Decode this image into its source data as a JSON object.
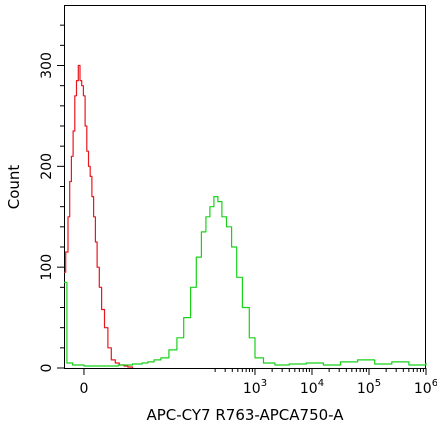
{
  "chart_data": {
    "type": "line",
    "title": "",
    "xlabel": "APC-CY7 R763-APCA750-A",
    "ylabel": "Count",
    "xscale": "biexponential",
    "ylim": [
      0,
      360
    ],
    "xticks": [
      {
        "pos": 0,
        "label": "0"
      },
      {
        "pos": 3,
        "label": "10",
        "exp": "3"
      },
      {
        "pos": 4,
        "label": "10",
        "exp": "4"
      },
      {
        "pos": 5,
        "label": "10",
        "exp": "5"
      },
      {
        "pos": 6,
        "label": "10",
        "exp": "6"
      }
    ],
    "yticks": [
      0,
      100,
      200,
      300
    ],
    "grid": false,
    "legend": "none",
    "series": [
      {
        "color": "#e8171f",
        "x": [
          -0.35,
          -0.32,
          -0.28,
          -0.25,
          -0.22,
          -0.19,
          -0.16,
          -0.13,
          -0.1,
          -0.07,
          -0.04,
          -0.01,
          0.02,
          0.05,
          0.08,
          0.11,
          0.14,
          0.17,
          0.2,
          0.23,
          0.27,
          0.31,
          0.36,
          0.42,
          0.48,
          0.55,
          0.62,
          0.7,
          0.77,
          0.85
        ],
        "y": [
          95,
          115,
          150,
          185,
          210,
          235,
          270,
          285,
          300,
          285,
          280,
          270,
          240,
          215,
          200,
          190,
          170,
          150,
          125,
          100,
          80,
          58,
          40,
          20,
          8,
          5,
          3,
          2,
          1,
          0
        ]
      },
      {
        "color": "#18d21a",
        "x": [
          -0.35,
          -0.3,
          -0.2,
          0.0,
          0.3,
          0.6,
          0.85,
          1.02,
          1.12,
          1.23,
          1.35,
          1.49,
          1.63,
          1.75,
          1.87,
          1.97,
          2.06,
          2.14,
          2.21,
          2.28,
          2.35,
          2.42,
          2.5,
          2.59,
          2.68,
          2.78,
          2.9,
          3.0,
          3.15,
          3.35,
          3.6,
          3.9,
          4.2,
          4.5,
          4.8,
          5.1,
          5.4,
          5.7,
          6.0
        ],
        "y": [
          85,
          5,
          3,
          2,
          2,
          3,
          4,
          5,
          6,
          8,
          10,
          18,
          30,
          50,
          80,
          110,
          135,
          150,
          160,
          170,
          165,
          150,
          140,
          120,
          90,
          60,
          30,
          10,
          5,
          3,
          4,
          5,
          3,
          6,
          8,
          4,
          6,
          3,
          5
        ]
      }
    ]
  }
}
